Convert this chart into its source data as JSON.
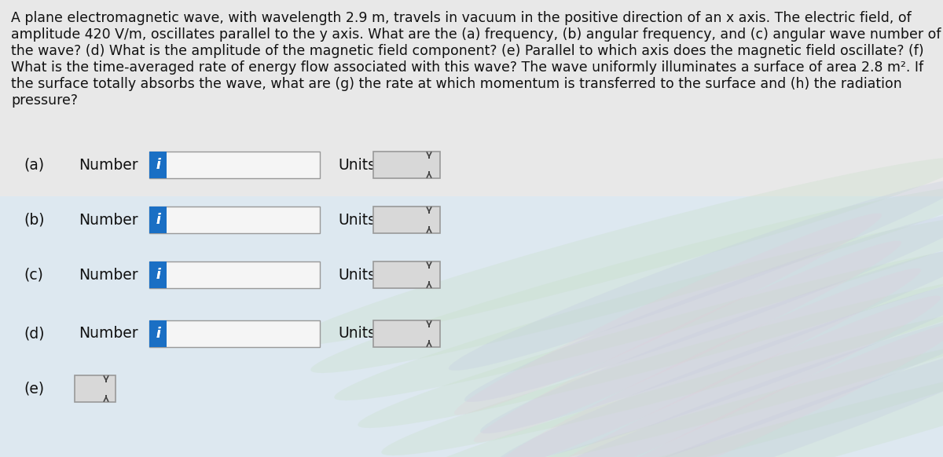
{
  "background_color": "#e8e8e8",
  "text_lines": [
    "A plane electromagnetic wave, with wavelength 2.9 m, travels in vacuum in the positive direction of an x axis. The electric field, of",
    "amplitude 420 V/m, oscillates parallel to the y axis. What are the (a) frequency, (b) angular frequency, and (c) angular wave number of",
    "the wave? (d) What is the amplitude of the magnetic field component? (e) Parallel to which axis does the magnetic field oscillate? (f)",
    "What is the time-averaged rate of energy flow associated with this wave? The wave uniformly illuminates a surface of area 2.8 m². If",
    "the surface totally absorbs the wave, what are (g) the rate at which momentum is transferred to the surface and (h) the radiation",
    "pressure?"
  ],
  "rows": [
    {
      "label": "(a)",
      "has_number": true,
      "has_units": true
    },
    {
      "label": "(b)",
      "has_number": true,
      "has_units": true
    },
    {
      "label": "(c)",
      "has_number": true,
      "has_units": true
    },
    {
      "label": "(d)",
      "has_number": true,
      "has_units": true
    },
    {
      "label": "(e)",
      "has_number": false,
      "has_units": false
    }
  ],
  "blue_button_color": "#1a6fc4",
  "input_box_color": "#f5f5f5",
  "units_box_color": "#d8d8d8",
  "border_color": "#999999",
  "text_color": "#111111",
  "label_fontsize": 13.5,
  "text_fontsize": 12.5,
  "fig_width": 12.0,
  "fig_height": 5.82,
  "dpi": 100
}
